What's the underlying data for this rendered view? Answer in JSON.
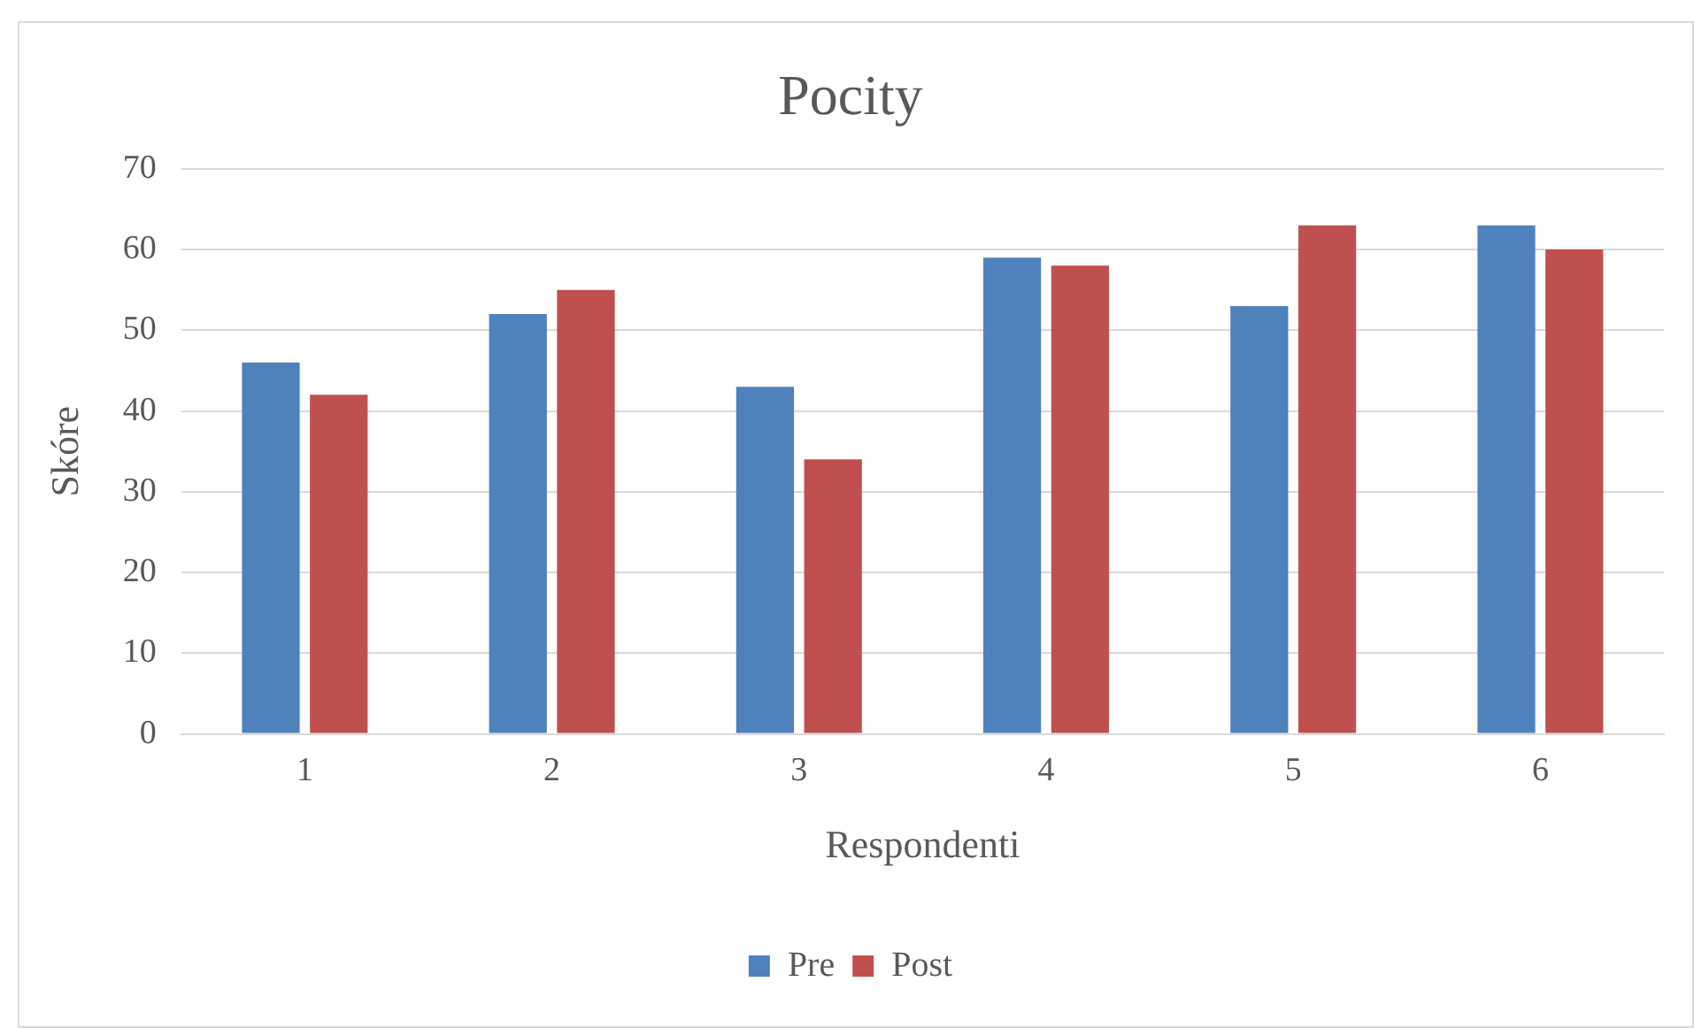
{
  "chart_data": {
    "type": "bar",
    "title": "Pocity",
    "xlabel": "Respondenti",
    "ylabel": "Skóre",
    "categories": [
      "1",
      "2",
      "3",
      "4",
      "5",
      "6"
    ],
    "series": [
      {
        "name": "Pre",
        "color": "#4f81bd",
        "values": [
          46,
          52,
          43,
          59,
          53,
          63
        ]
      },
      {
        "name": "Post",
        "color": "#c0504d",
        "values": [
          42,
          55,
          34,
          58,
          63,
          60
        ]
      }
    ],
    "ylim": [
      0,
      70
    ],
    "yticks": [
      0,
      10,
      20,
      30,
      40,
      50,
      60,
      70
    ],
    "grid": "y",
    "legend": "bottom"
  }
}
